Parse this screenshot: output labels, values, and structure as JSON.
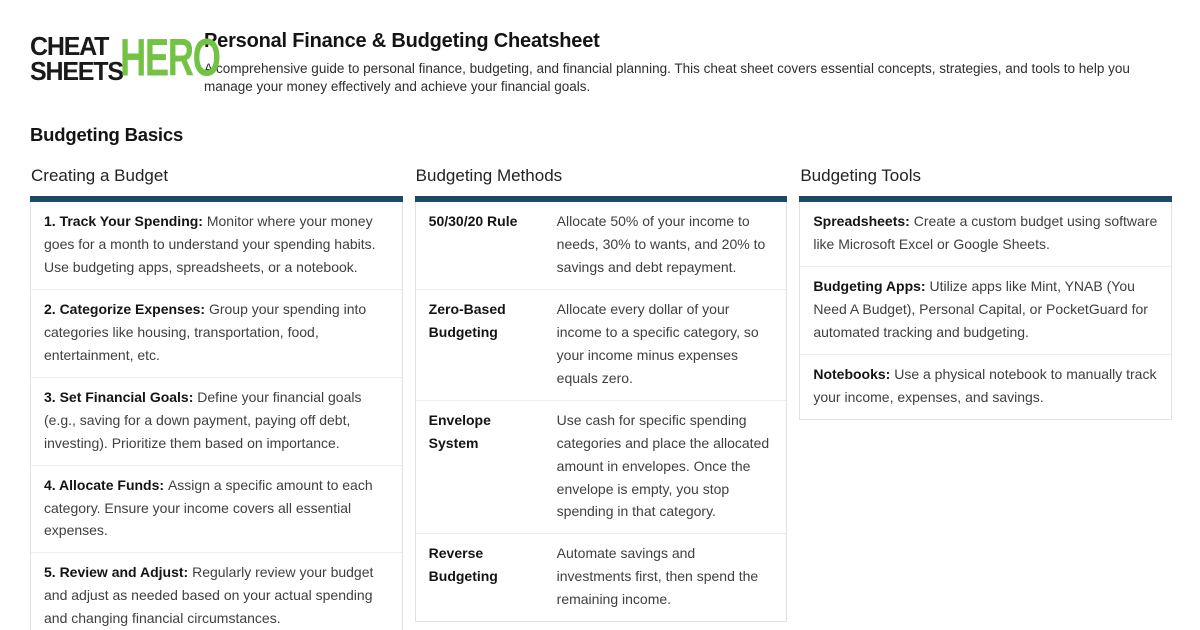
{
  "logo": {
    "word1": "CHEAT",
    "word2": "SHEETS",
    "word3": "HERO"
  },
  "header": {
    "title": "Personal Finance & Budgeting Cheatsheet",
    "subtitle": "A comprehensive guide to personal finance, budgeting, and financial planning. This cheat sheet covers essential concepts, strategies, and tools to help you manage your money effectively and achieve your financial goals."
  },
  "section_title": "Budgeting Basics",
  "colors": {
    "accent_bar": "#1b4a65",
    "logo_green": "#72c244",
    "logo_black": "#1a1a1a"
  },
  "columns": [
    {
      "title": "Creating a Budget",
      "type": "list",
      "items": [
        {
          "label": "1. Track Your Spending:",
          "text": "Monitor where your money goes for a month to understand your spending habits. Use budgeting apps, spreadsheets, or a notebook."
        },
        {
          "label": "2. Categorize Expenses:",
          "text": "Group your spending into categories like housing, transportation, food, entertainment, etc."
        },
        {
          "label": "3. Set Financial Goals:",
          "text": "Define your financial goals (e.g., saving for a down payment, paying off debt, investing). Prioritize them based on importance."
        },
        {
          "label": "4. Allocate Funds:",
          "text": "Assign a specific amount to each category. Ensure your income covers all essential expenses."
        },
        {
          "label": "5. Review and Adjust:",
          "text": "Regularly review your budget and adjust as needed based on your actual spending and changing financial circumstances."
        }
      ]
    },
    {
      "title": "Budgeting Methods",
      "type": "table",
      "rows": [
        {
          "term": "50/30/20 Rule",
          "definition": "Allocate 50% of your income to needs, 30% to wants, and 20% to savings and debt repayment."
        },
        {
          "term": "Zero-Based Budgeting",
          "definition": "Allocate every dollar of your income to a specific category, so your income minus expenses equals zero."
        },
        {
          "term": "Envelope System",
          "definition": "Use cash for specific spending categories and place the allocated amount in envelopes. Once the envelope is empty, you stop spending in that category."
        },
        {
          "term": "Reverse Budgeting",
          "definition": "Automate savings and investments first, then spend the remaining income."
        }
      ]
    },
    {
      "title": "Budgeting Tools",
      "type": "list",
      "items": [
        {
          "label": "Spreadsheets:",
          "text": "Create a custom budget using software like Microsoft Excel or Google Sheets."
        },
        {
          "label": "Budgeting Apps:",
          "text": "Utilize apps like Mint, YNAB (You Need A Budget), Personal Capital, or PocketGuard for automated tracking and budgeting."
        },
        {
          "label": "Notebooks:",
          "text": "Use a physical notebook to manually track your income, expenses, and savings."
        }
      ]
    }
  ]
}
